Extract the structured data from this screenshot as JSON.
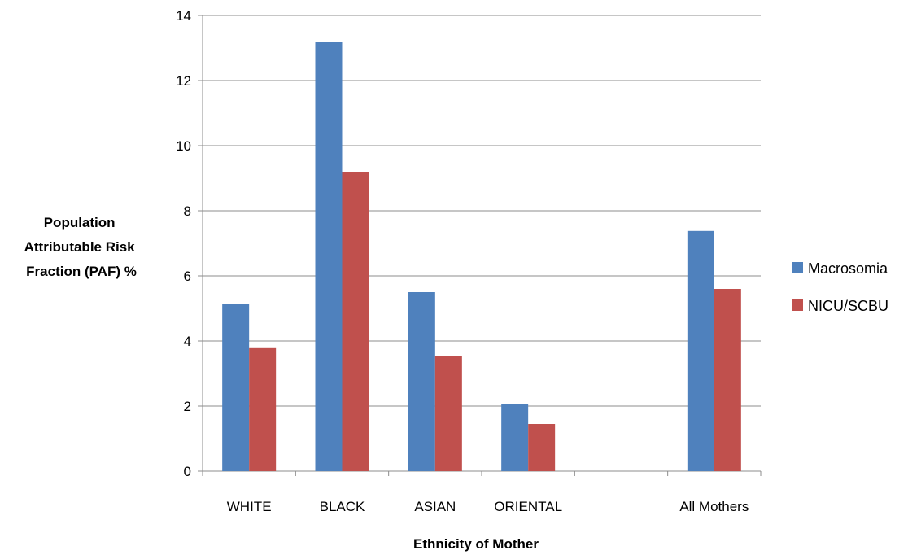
{
  "chart_data": {
    "type": "bar",
    "categories": [
      "WHITE",
      "BLACK",
      "ASIAN",
      "ORIENTAL",
      "",
      "All Mothers"
    ],
    "series": [
      {
        "name": "Macrosomia",
        "color": "#4F81BD",
        "values": [
          5.15,
          13.2,
          5.5,
          2.07,
          null,
          7.38
        ]
      },
      {
        "name": "NICU/SCBU",
        "color": "#C0504D",
        "values": [
          3.78,
          9.2,
          3.55,
          1.45,
          null,
          5.6
        ]
      }
    ],
    "xlabel": "Ethnicity of Mother",
    "ylabel_lines": [
      "Population",
      "Attributable Risk",
      "Fraction (PAF) %"
    ],
    "ylim": [
      0,
      14
    ],
    "yticks": [
      0,
      2,
      4,
      6,
      8,
      10,
      12,
      14
    ],
    "grid": true,
    "legend_position": "right"
  }
}
